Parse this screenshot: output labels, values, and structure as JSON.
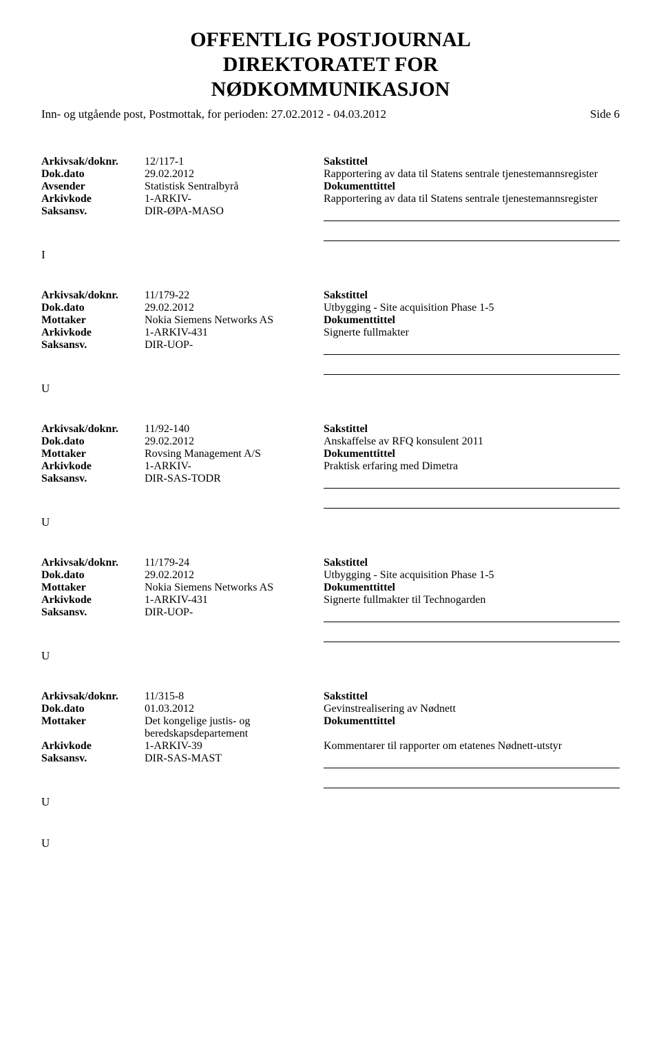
{
  "header": {
    "title_line1": "OFFENTLIG POSTJOURNAL",
    "title_line2": "DIREKTORATET FOR",
    "title_line3": "NØDKOMMUNIKASJON",
    "subtitle": "Inn- og utgående post, Postmottak, for perioden: 27.02.2012 - 04.03.2012",
    "page_label": "Side 6"
  },
  "labels": {
    "arkivsak": "Arkivsak/doknr.",
    "dokdato": "Dok.dato",
    "avsender": "Avsender",
    "mottaker": "Mottaker",
    "arkivkode": "Arkivkode",
    "saksansv": "Saksansv.",
    "sakstittel": "Sakstittel",
    "dokumenttittel": "Dokumenttittel"
  },
  "entries": [
    {
      "type": "I",
      "arkivsak": "12/117-1",
      "dokdato": "29.02.2012",
      "party_label": "Avsender",
      "party": "Statistisk Sentralbyrå",
      "arkivkode": "1-ARKIV-",
      "saksansv": "DIR-ØPA-MASO",
      "sakstittel": "Rapportering av data til Statens sentrale tjenestemannsregister",
      "dokumenttittel": "Rapportering av data til Statens sentrale tjenestemannsregister"
    },
    {
      "type": "U",
      "arkivsak": "11/179-22",
      "dokdato": "29.02.2012",
      "party_label": "Mottaker",
      "party": "Nokia Siemens Networks AS",
      "arkivkode": "1-ARKIV-431",
      "saksansv": "DIR-UOP-",
      "sakstittel": "Utbygging - Site acquisition Phase 1-5",
      "dokumenttittel": "Signerte fullmakter"
    },
    {
      "type": "U",
      "arkivsak": "11/92-140",
      "dokdato": "29.02.2012",
      "party_label": "Mottaker",
      "party": "Rovsing Management A/S",
      "arkivkode": "1-ARKIV-",
      "saksansv": "DIR-SAS-TODR",
      "sakstittel": "Anskaffelse av RFQ konsulent 2011",
      "dokumenttittel": "Praktisk erfaring med Dimetra"
    },
    {
      "type": "U",
      "arkivsak": "11/179-24",
      "dokdato": "29.02.2012",
      "party_label": "Mottaker",
      "party": "Nokia Siemens Networks AS",
      "arkivkode": "1-ARKIV-431",
      "saksansv": "DIR-UOP-",
      "sakstittel": "Utbygging - Site acquisition Phase 1-5",
      "dokumenttittel": "Signerte fullmakter til Technogarden"
    },
    {
      "type": "U",
      "arkivsak": "11/315-8",
      "dokdato": "01.03.2012",
      "party_label": "Mottaker",
      "party": "Det kongelige justis- og beredskapsdepartement",
      "arkivkode": "1-ARKIV-39",
      "saksansv": "DIR-SAS-MAST",
      "sakstittel": "Gevinstrealisering av Nødnett",
      "dokumenttittel": "Kommentarer til rapporter om etatenes Nødnett-utstyr"
    }
  ],
  "trailing_type": "U",
  "colors": {
    "text": "#000000",
    "background": "#ffffff"
  },
  "layout": {
    "label_col_width": 150,
    "value_col_width": 260
  }
}
